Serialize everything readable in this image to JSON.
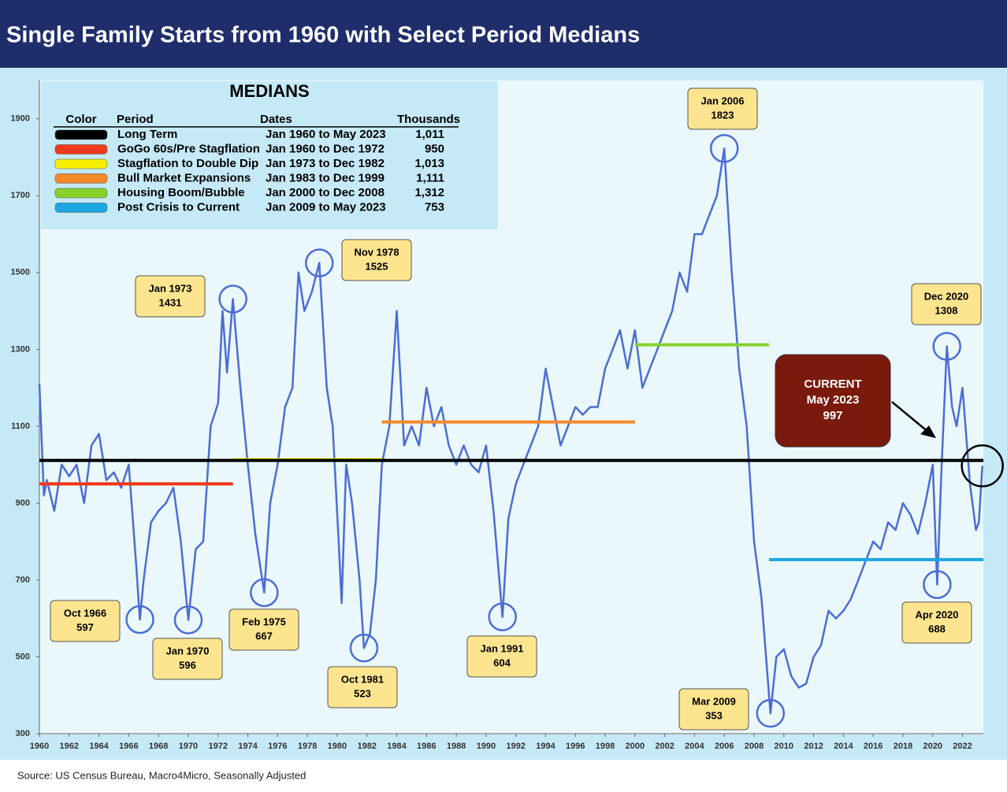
{
  "chart_data": {
    "type": "line",
    "title": "Single Family Starts from 1960 with Select Period Medians",
    "source": "Source: US Census Bureau, Macro4Micro, Seasonally Adjusted",
    "color": "#4c6cd6",
    "xlim": [
      1960,
      2023.4
    ],
    "ylim": [
      300,
      2000
    ],
    "xticks": [
      1960,
      1962,
      1964,
      1966,
      1968,
      1970,
      1972,
      1974,
      1976,
      1978,
      1980,
      1982,
      1984,
      1986,
      1988,
      1990,
      1992,
      1994,
      1996,
      1998,
      2000,
      2002,
      2004,
      2006,
      2008,
      2010,
      2012,
      2014,
      2016,
      2018,
      2020,
      2022
    ],
    "yticks": [
      300,
      500,
      700,
      900,
      1100,
      1300,
      1500,
      1700,
      1900
    ],
    "x": [
      1960,
      1960.3,
      1960.5,
      1961,
      1961.5,
      1962,
      1962.5,
      1963,
      1963.5,
      1964,
      1964.5,
      1965,
      1965.5,
      1966,
      1966.5,
      1966.75,
      1967,
      1967.5,
      1968,
      1968.5,
      1969,
      1969.5,
      1970,
      1970.5,
      1971,
      1971.5,
      1972,
      1972.3,
      1972.6,
      1973,
      1973.5,
      1974,
      1974.5,
      1975.1,
      1975.5,
      1976,
      1976.5,
      1977,
      1977.4,
      1977.8,
      1978.3,
      1978.8,
      1979.3,
      1979.7,
      1980.1,
      1980.3,
      1980.6,
      1981,
      1981.5,
      1981.8,
      1982.2,
      1982.6,
      1983,
      1983.5,
      1984,
      1984.5,
      1985,
      1985.5,
      1986,
      1986.5,
      1987,
      1987.5,
      1988,
      1988.5,
      1989,
      1989.5,
      1990,
      1990.5,
      1991.1,
      1991.5,
      1992,
      1992.5,
      1993,
      1993.5,
      1994,
      1994.5,
      1995,
      1995.5,
      1996,
      1996.5,
      1997,
      1997.5,
      1998,
      1998.5,
      1999,
      1999.5,
      2000,
      2000.5,
      2001,
      2001.5,
      2002,
      2002.5,
      2003,
      2003.5,
      2004,
      2004.5,
      2005,
      2005.5,
      2006,
      2006.5,
      2007,
      2007.5,
      2008,
      2008.5,
      2009.1,
      2009.5,
      2010,
      2010.5,
      2011,
      2011.5,
      2012,
      2012.5,
      2013,
      2013.5,
      2014,
      2014.5,
      2015,
      2015.5,
      2016,
      2016.5,
      2017,
      2017.5,
      2018,
      2018.5,
      2019,
      2019.5,
      2020,
      2020.3,
      2020.6,
      2020.95,
      2021.3,
      2021.6,
      2022,
      2022.5,
      2022.9,
      2023.1,
      2023.33
    ],
    "values": [
      1210,
      920,
      960,
      880,
      1000,
      970,
      1000,
      900,
      1050,
      1080,
      960,
      980,
      940,
      1000,
      740,
      597,
      700,
      850,
      880,
      900,
      940,
      800,
      596,
      780,
      800,
      1100,
      1160,
      1400,
      1240,
      1431,
      1200,
      1000,
      820,
      667,
      900,
      1000,
      1150,
      1200,
      1500,
      1400,
      1450,
      1525,
      1200,
      1100,
      800,
      640,
      1000,
      900,
      700,
      523,
      560,
      700,
      1000,
      1100,
      1400,
      1050,
      1100,
      1050,
      1200,
      1100,
      1150,
      1050,
      1000,
      1050,
      1000,
      980,
      1050,
      880,
      604,
      860,
      950,
      1000,
      1050,
      1100,
      1250,
      1150,
      1050,
      1100,
      1150,
      1130,
      1150,
      1150,
      1250,
      1300,
      1350,
      1250,
      1350,
      1200,
      1250,
      1300,
      1350,
      1400,
      1500,
      1450,
      1600,
      1600,
      1650,
      1700,
      1823,
      1500,
      1250,
      1100,
      800,
      650,
      353,
      500,
      520,
      450,
      420,
      430,
      500,
      530,
      620,
      600,
      620,
      650,
      700,
      750,
      800,
      780,
      850,
      830,
      900,
      870,
      820,
      900,
      1000,
      688,
      1000,
      1308,
      1150,
      1100,
      1200,
      950,
      830,
      850,
      997
    ],
    "medians": {
      "title": "MEDIANS",
      "headers": [
        "Color",
        "Period",
        "Dates",
        "Thousands"
      ],
      "rows": [
        {
          "period": "Long Term",
          "dates": "Jan 1960 to May 2023",
          "value": 1011,
          "value_label": "1,011",
          "color": "#000000",
          "xrange": [
            1960,
            2023.4
          ]
        },
        {
          "period": "GoGo 60s/Pre Stagflation",
          "dates": "Jan 1960 to Dec 1972",
          "value": 950,
          "value_label": "950",
          "color": "#f03a1e",
          "xrange": [
            1960,
            1973
          ]
        },
        {
          "period": "Stagflation to Double Dip",
          "dates": "Jan 1973 to Dec 1982",
          "value": 1013,
          "value_label": "1,013",
          "color": "#f5f000",
          "xrange": [
            1973,
            1983
          ]
        },
        {
          "period": "Bull Market Expansions",
          "dates": "Jan 1983 to Dec 1999",
          "value": 1111,
          "value_label": "1,111",
          "color": "#f5892a",
          "xrange": [
            1983,
            2000
          ]
        },
        {
          "period": "Housing Boom/Bubble",
          "dates": "Jan 2000 to Dec 2008",
          "value": 1312,
          "value_label": "1,312",
          "color": "#86d12c",
          "xrange": [
            2000,
            2009
          ]
        },
        {
          "period": "Post Crisis to Current",
          "dates": "Jan 2009 to May 2023",
          "value": 753,
          "value_label": "753",
          "color": "#1ca7e0",
          "xrange": [
            2009,
            2023.4
          ]
        }
      ]
    },
    "annotations": [
      {
        "label": "Oct 1966",
        "value": 597,
        "x": 1966.75
      },
      {
        "label": "Jan 1970",
        "value": 596,
        "x": 1970
      },
      {
        "label": "Jan 1973",
        "value": 1431,
        "x": 1973
      },
      {
        "label": "Feb 1975",
        "value": 667,
        "x": 1975.1
      },
      {
        "label": "Nov 1978",
        "value": 1525,
        "x": 1978.8
      },
      {
        "label": "Oct 1981",
        "value": 523,
        "x": 1981.8
      },
      {
        "label": "Jan 1991",
        "value": 604,
        "x": 1991.1
      },
      {
        "label": "Jan 2006",
        "value": 1823,
        "x": 2006
      },
      {
        "label": "Mar 2009",
        "value": 353,
        "x": 2009.1
      },
      {
        "label": "Dec 2020",
        "value": 1308,
        "x": 2020.95
      },
      {
        "label": "Apr 2020",
        "value": 688,
        "x": 2020.3
      }
    ],
    "current": {
      "title": "CURRENT",
      "label": "May 2023",
      "value": 997,
      "x": 2023.33
    }
  }
}
